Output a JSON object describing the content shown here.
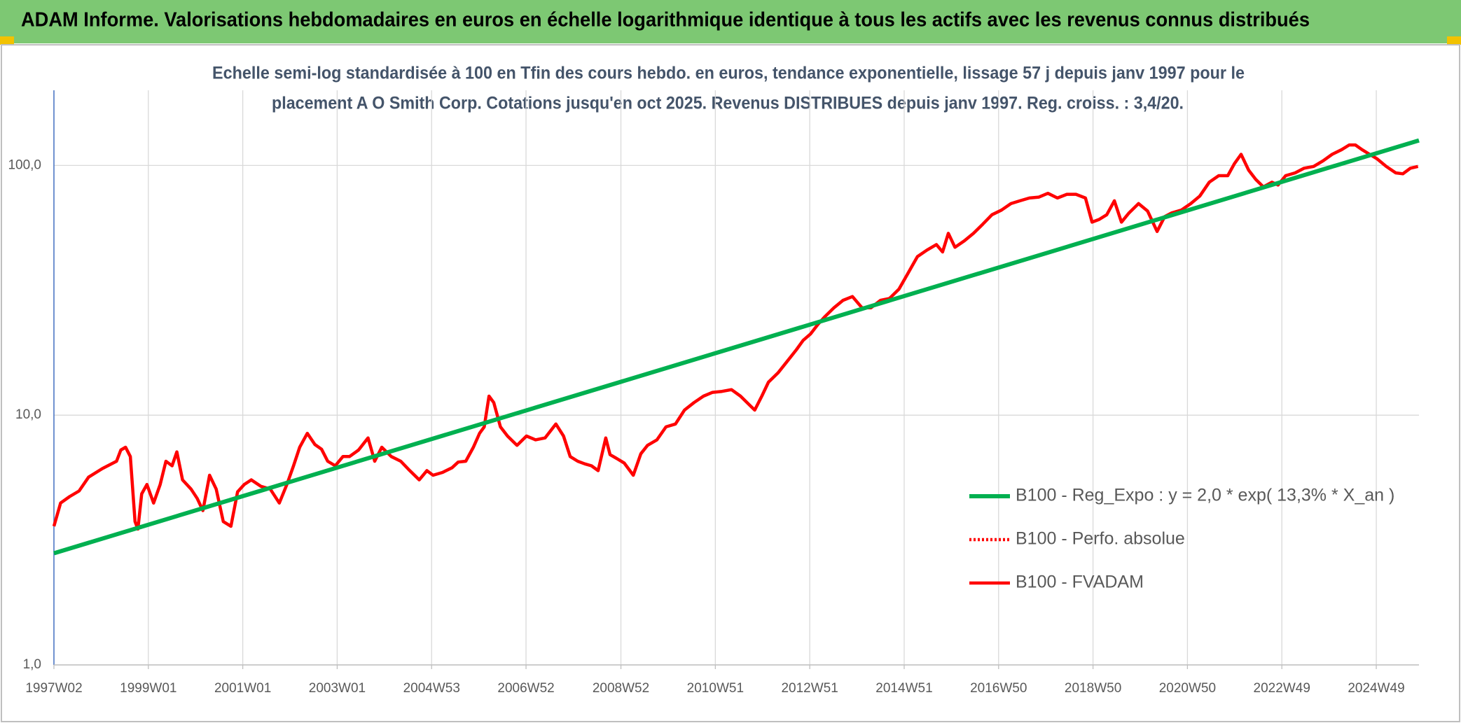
{
  "chart_data": {
    "type": "line",
    "title": "ADAM Informe. Valorisations hebdomadaires en euros en échelle logarithmique identique à tous les actifs avec les revenus connus distribués",
    "subtitle": [
      "Echelle semi-log standardisée à 100 en Tfin des cours hebdo. en euros, tendance exponentielle, lissage 57 j depuis janv 1997 pour le",
      "placement A O Smith Corp. Cotations jusqu'en oct 2025. Revenus DISTRIBUES depuis janv 1997. Reg. croiss. : 3,4/20."
    ],
    "log_y": true,
    "grid": true,
    "legend": "right",
    "ylim": [
      1,
      200
    ],
    "yticks": [
      {
        "value": 1,
        "label": "1,0"
      },
      {
        "value": 10,
        "label": "10,0"
      },
      {
        "value": 100,
        "label": "100,0"
      }
    ],
    "xlim": [
      1997.03,
      2025.8
    ],
    "xticks": [
      {
        "value": 1997.03,
        "label": "1997W02"
      },
      {
        "value": 1999.02,
        "label": "1999W01"
      },
      {
        "value": 2001.01,
        "label": "2001W01"
      },
      {
        "value": 2003.0,
        "label": "2003W01"
      },
      {
        "value": 2004.99,
        "label": "2004W53"
      },
      {
        "value": 2006.98,
        "label": "2006W52"
      },
      {
        "value": 2008.98,
        "label": "2008W52"
      },
      {
        "value": 2010.97,
        "label": "2010W51"
      },
      {
        "value": 2012.96,
        "label": "2012W51"
      },
      {
        "value": 2014.95,
        "label": "2014W51"
      },
      {
        "value": 2016.94,
        "label": "2016W50"
      },
      {
        "value": 2018.93,
        "label": "2018W50"
      },
      {
        "value": 2020.92,
        "label": "2020W50"
      },
      {
        "value": 2022.91,
        "label": "2022W49"
      },
      {
        "value": 2024.9,
        "label": "2024W49"
      }
    ],
    "series": [
      {
        "name": "B100 - Reg_Expo : y = 2,0 * exp( 13,3% *  X_an )",
        "color": "#00b050",
        "dash": "solid",
        "x": [
          1997.03,
          2025.8
        ],
        "values": [
          2.8,
          126
        ]
      },
      {
        "name": "B100 - Perfo. absolue",
        "color": "#ff0000",
        "dash": "dotted",
        "x": [],
        "values": []
      },
      {
        "name": "B100 - FVADAM",
        "color": "#ff0000",
        "dash": "solid",
        "x": [
          1997.03,
          1997.17,
          1997.36,
          1997.56,
          1997.76,
          1998.05,
          1998.35,
          1998.44,
          1998.54,
          1998.64,
          1998.74,
          1998.8,
          1998.88,
          1998.99,
          1999.13,
          1999.27,
          1999.39,
          1999.52,
          1999.62,
          1999.74,
          1999.92,
          2000.05,
          2000.17,
          2000.31,
          2000.45,
          2000.6,
          2000.76,
          2000.9,
          2001.04,
          2001.19,
          2001.39,
          2001.59,
          2001.78,
          2001.94,
          2002.08,
          2002.21,
          2002.37,
          2002.53,
          2002.67,
          2002.8,
          2002.96,
          2003.12,
          2003.26,
          2003.45,
          2003.65,
          2003.79,
          2003.94,
          2004.14,
          2004.34,
          2004.53,
          2004.73,
          2004.89,
          2005.02,
          2005.22,
          2005.42,
          2005.55,
          2005.71,
          2005.87,
          2006.0,
          2006.1,
          2006.2,
          2006.3,
          2006.44,
          2006.59,
          2006.79,
          2006.99,
          2007.18,
          2007.38,
          2007.61,
          2007.77,
          2007.91,
          2008.07,
          2008.22,
          2008.36,
          2008.5,
          2008.66,
          2008.75,
          2008.89,
          2009.05,
          2009.24,
          2009.4,
          2009.54,
          2009.74,
          2009.93,
          2010.13,
          2010.32,
          2010.52,
          2010.72,
          2010.91,
          2011.11,
          2011.31,
          2011.5,
          2011.7,
          2011.8,
          2011.95,
          2012.09,
          2012.29,
          2012.48,
          2012.68,
          2012.82,
          2012.98,
          2013.13,
          2013.27,
          2013.47,
          2013.66,
          2013.86,
          2014.06,
          2014.25,
          2014.45,
          2014.64,
          2014.84,
          2015.04,
          2015.23,
          2015.43,
          2015.63,
          2015.76,
          2015.88,
          2016.02,
          2016.22,
          2016.41,
          2016.61,
          2016.8,
          2017.0,
          2017.2,
          2017.39,
          2017.59,
          2017.79,
          2017.98,
          2018.18,
          2018.38,
          2018.57,
          2018.77,
          2018.91,
          2019.06,
          2019.22,
          2019.38,
          2019.53,
          2019.69,
          2019.89,
          2020.08,
          2020.28,
          2020.44,
          2020.59,
          2020.79,
          2020.99,
          2021.18,
          2021.38,
          2021.58,
          2021.77,
          2021.91,
          2022.05,
          2022.21,
          2022.36,
          2022.52,
          2022.7,
          2022.83,
          2022.99,
          2023.19,
          2023.38,
          2023.58,
          2023.78,
          2023.97,
          2024.17,
          2024.33,
          2024.46,
          2024.6,
          2024.76,
          2024.92,
          2025.11,
          2025.31,
          2025.46,
          2025.62,
          2025.78
        ],
        "values": [
          3.59,
          4.45,
          4.72,
          4.97,
          5.65,
          6.11,
          6.54,
          7.25,
          7.44,
          6.83,
          3.75,
          3.5,
          4.84,
          5.28,
          4.45,
          5.28,
          6.54,
          6.27,
          7.13,
          5.51,
          5.06,
          4.64,
          4.15,
          5.75,
          5.06,
          3.75,
          3.59,
          4.93,
          5.28,
          5.51,
          5.19,
          5.06,
          4.45,
          5.28,
          6.27,
          7.44,
          8.46,
          7.63,
          7.31,
          6.54,
          6.27,
          6.83,
          6.83,
          7.25,
          8.11,
          6.54,
          7.44,
          6.83,
          6.54,
          6.0,
          5.51,
          6.0,
          5.75,
          5.9,
          6.16,
          6.49,
          6.54,
          7.44,
          8.46,
          8.98,
          11.92,
          11.23,
          8.98,
          8.25,
          7.57,
          8.25,
          7.97,
          8.11,
          9.22,
          8.25,
          6.83,
          6.54,
          6.38,
          6.27,
          6.0,
          8.11,
          6.95,
          6.71,
          6.43,
          5.75,
          7.01,
          7.57,
          7.97,
          8.98,
          9.22,
          10.48,
          11.23,
          11.92,
          12.34,
          12.45,
          12.66,
          11.92,
          10.94,
          10.48,
          11.92,
          13.56,
          14.77,
          16.38,
          18.31,
          19.94,
          21.18,
          23.08,
          24.71,
          26.93,
          28.84,
          29.85,
          26.93,
          26.93,
          28.84,
          29.34,
          31.97,
          37.3,
          43.15,
          45.83,
          48.24,
          45.05,
          53.47,
          47.02,
          49.93,
          53.47,
          58.27,
          63.48,
          66.26,
          70.37,
          72.2,
          74.08,
          74.72,
          77.33,
          74.08,
          76.67,
          76.67,
          74.08,
          59.28,
          60.81,
          63.48,
          72.2,
          59.28,
          64.59,
          70.37,
          65.7,
          54.4,
          62.4,
          64.59,
          66.26,
          70.37,
          75.38,
          85.7,
          91.0,
          91.0,
          101.7,
          110.8,
          95.8,
          87.9,
          82.1,
          85.7,
          83.5,
          91.0,
          93.4,
          97.5,
          99.1,
          104.4,
          110.8,
          115.7,
          120.8,
          120.8,
          115.7,
          110.8,
          106.2,
          99.1,
          93.4,
          92.6,
          97.5,
          99.1
        ]
      }
    ]
  }
}
